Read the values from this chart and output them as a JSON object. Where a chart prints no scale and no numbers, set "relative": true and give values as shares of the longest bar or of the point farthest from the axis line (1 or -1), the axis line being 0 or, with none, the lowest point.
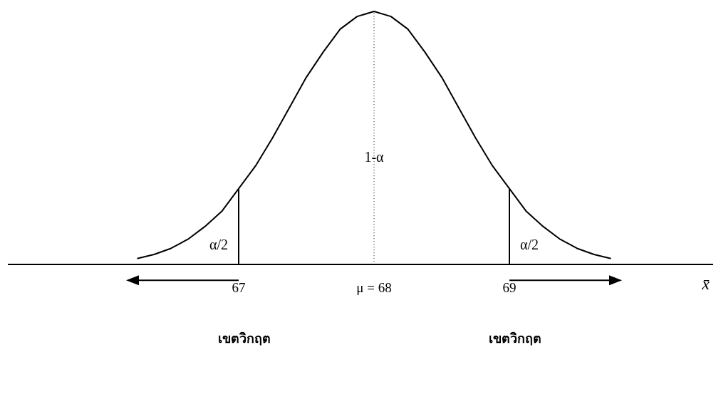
{
  "chart_data": {
    "type": "line",
    "relative": true,
    "x": [
      66.25,
      66.375,
      66.5,
      66.625,
      66.75,
      66.875,
      67,
      67.125,
      67.25,
      67.375,
      67.5,
      67.625,
      67.75,
      67.875,
      68,
      68.125,
      68.25,
      68.375,
      68.5,
      68.625,
      68.75,
      68.875,
      69,
      69.125,
      69.25,
      69.375,
      69.5,
      69.625,
      69.75
    ],
    "series": [
      {
        "color": "#000000",
        "values": [
          0.024,
          0.04,
          0.064,
          0.1,
          0.15,
          0.21,
          0.3,
          0.39,
          0.5,
          0.62,
          0.74,
          0.84,
          0.93,
          0.98,
          1,
          0.98,
          0.93,
          0.84,
          0.74,
          0.62,
          0.5,
          0.39,
          0.3,
          0.21,
          0.15,
          0.1,
          0.064,
          0.04,
          0.024
        ]
      }
    ],
    "xlim": [
      65.3,
      70.5
    ],
    "xticks": [
      {
        "value": 67,
        "label": "67"
      },
      {
        "value": 68,
        "label": "μ = 68"
      },
      {
        "value": 69,
        "label": "69"
      }
    ],
    "xlabel": "x̄",
    "ref_lines": [
      {
        "axis": "x",
        "value": 67,
        "color": "#000000",
        "line_style": "solid"
      },
      {
        "axis": "x",
        "value": 68,
        "color": "#000000",
        "line_style": "dotted"
      },
      {
        "axis": "x",
        "value": 69,
        "color": "#000000",
        "line_style": "solid"
      }
    ],
    "annotations": [
      {
        "text": "1-α",
        "x": 68,
        "y": 0.42
      },
      "α/2",
      "α/2",
      "เขตวิกฤต",
      "เขตวิกฤต"
    ],
    "grid": false,
    "legend": false,
    "marker": "none",
    "line_style": "solid"
  }
}
